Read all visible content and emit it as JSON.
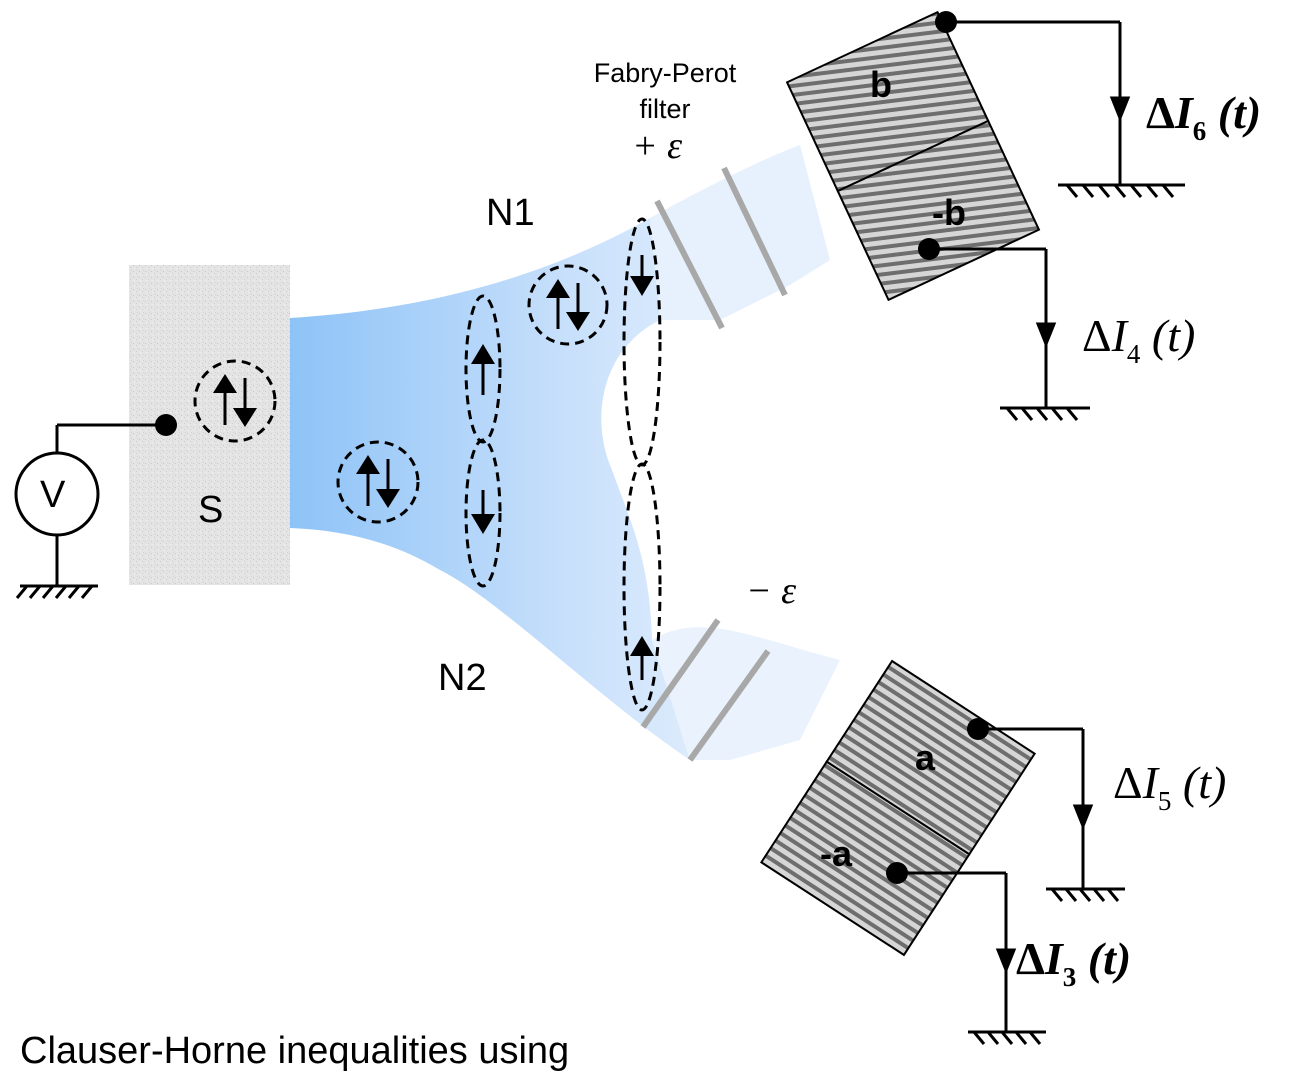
{
  "labels": {
    "superconductor": "S",
    "voltage_source": "V",
    "lead_top": "N1",
    "lead_bottom": "N2",
    "filter_line1": "Fabry-Perot",
    "filter_line2": "filter",
    "energy_plus": "+ ε",
    "energy_minus": "− ε"
  },
  "detectors": {
    "top_upper": "b",
    "top_lower": "-b",
    "bottom_upper": "a",
    "bottom_lower": "-a"
  },
  "currents": [
    {
      "id": "I6",
      "delta": "Δ",
      "symbol": "I",
      "subscript": "6",
      "arg": " (t)",
      "bold": true
    },
    {
      "id": "I4",
      "delta": "Δ",
      "symbol": "I",
      "subscript": "4",
      "arg": " (t)",
      "bold": false
    },
    {
      "id": "I5",
      "delta": "Δ",
      "symbol": "I",
      "subscript": "5",
      "arg": " (t)",
      "bold": false
    },
    {
      "id": "I3",
      "delta": "Δ",
      "symbol": "I",
      "subscript": "3",
      "arg": " (t)",
      "bold": true
    }
  ],
  "caption": "Clauser-Horne inequalities using"
}
